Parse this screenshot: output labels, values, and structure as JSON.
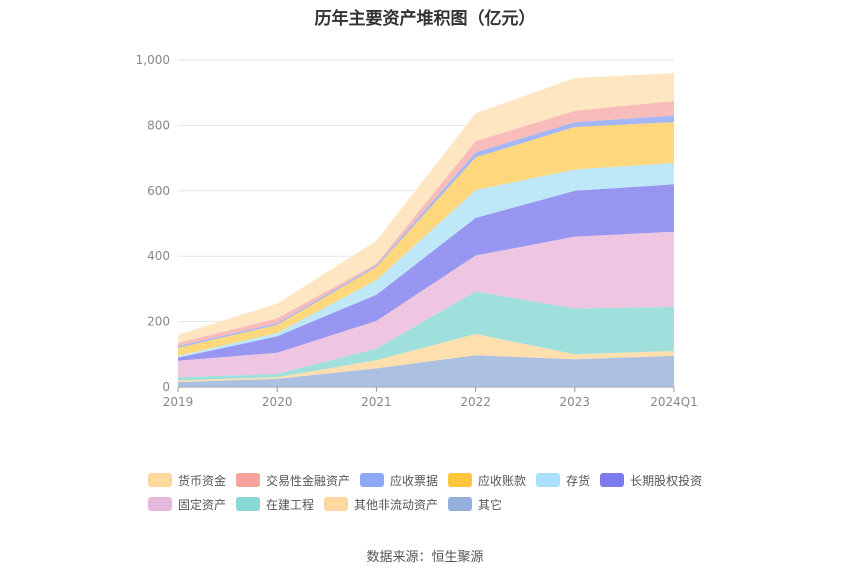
{
  "title": "历年主要资产堆积图（亿元）",
  "source": "数据来源：恒生聚源",
  "chart_data": {
    "type": "area",
    "stacked": true,
    "categories": [
      "2019",
      "2020",
      "2021",
      "2022",
      "2023",
      "2024Q1"
    ],
    "ylim": [
      0,
      1000
    ],
    "yticks": [
      0,
      200,
      400,
      600,
      800,
      1000
    ],
    "ytick_labels": [
      "0",
      "200",
      "400",
      "600",
      "800",
      "1,000"
    ],
    "grid": true,
    "legend_position": "bottom",
    "series": [
      {
        "name": "其它",
        "color": "#9db5dc",
        "values": [
          15,
          25,
          57,
          97,
          85,
          95
        ]
      },
      {
        "name": "其他非流动资产",
        "color": "#ffd9a0",
        "values": [
          5,
          5,
          25,
          65,
          15,
          15
        ]
      },
      {
        "name": "在建工程",
        "color": "#8fdad6",
        "values": [
          10,
          10,
          35,
          130,
          140,
          135
        ]
      },
      {
        "name": "固定资产",
        "color": "#ebbcdc",
        "values": [
          50,
          65,
          85,
          110,
          220,
          230
        ]
      },
      {
        "name": "长期股权投资",
        "color": "#8585ef",
        "values": [
          10,
          50,
          80,
          115,
          140,
          145
        ]
      },
      {
        "name": "存货",
        "color": "#b3e4f7",
        "values": [
          5,
          10,
          45,
          85,
          65,
          65
        ]
      },
      {
        "name": "应收账款",
        "color": "#ffd166",
        "values": [
          25,
          25,
          40,
          100,
          130,
          125
        ]
      },
      {
        "name": "应收票据",
        "color": "#94a9f5",
        "values": [
          5,
          5,
          5,
          15,
          15,
          20
        ]
      },
      {
        "name": "交易性金融资产",
        "color": "#f7b2ae",
        "values": [
          10,
          15,
          5,
          35,
          35,
          45
        ]
      },
      {
        "name": "货币资金",
        "color": "#ffe2b8",
        "values": [
          25,
          45,
          70,
          85,
          100,
          85
        ]
      }
    ]
  },
  "legend": [
    {
      "label": "货币资金",
      "color": "#ffd99e"
    },
    {
      "label": "交易性金融资产",
      "color": "#f7a39b"
    },
    {
      "label": "应收票据",
      "color": "#8fa8f5"
    },
    {
      "label": "应收账款",
      "color": "#ffc53d"
    },
    {
      "label": "存货",
      "color": "#a8e0fa"
    },
    {
      "label": "长期股权投资",
      "color": "#7b7bee"
    },
    {
      "label": "固定资产",
      "color": "#e6b8dc"
    },
    {
      "label": "在建工程",
      "color": "#86d8d4"
    },
    {
      "label": "其他非流动资产",
      "color": "#ffd9a0"
    },
    {
      "label": "其它",
      "color": "#94aede"
    }
  ]
}
